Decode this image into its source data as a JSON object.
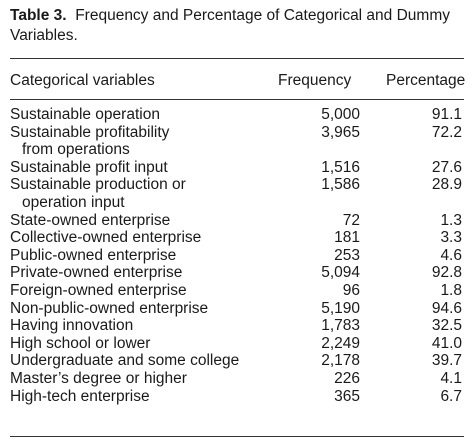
{
  "caption": {
    "label": "Table 3.",
    "title": "Frequency and Percentage of Categorical and Dummy Variables."
  },
  "header": {
    "variable": "Categorical variables",
    "frequency": "Frequency",
    "percentage": "Percentage"
  },
  "rows": [
    {
      "line1": "Sustainable operation",
      "line2": "",
      "frequency": "5,000",
      "percentage": "91.1"
    },
    {
      "line1": "Sustainable profitability",
      "line2": "from operations",
      "frequency": "3,965",
      "percentage": "72.2"
    },
    {
      "line1": "Sustainable profit input",
      "line2": "",
      "frequency": "1,516",
      "percentage": "27.6"
    },
    {
      "line1": "Sustainable production or",
      "line2": "operation input",
      "frequency": "1,586",
      "percentage": "28.9"
    },
    {
      "line1": "State-owned enterprise",
      "line2": "",
      "frequency": "72",
      "percentage": "1.3"
    },
    {
      "line1": "Collective-owned enterprise",
      "line2": "",
      "frequency": "181",
      "percentage": "3.3"
    },
    {
      "line1": "Public-owned enterprise",
      "line2": "",
      "frequency": "253",
      "percentage": "4.6"
    },
    {
      "line1": "Private-owned enterprise",
      "line2": "",
      "frequency": "5,094",
      "percentage": "92.8"
    },
    {
      "line1": "Foreign-owned enterprise",
      "line2": "",
      "frequency": "96",
      "percentage": "1.8"
    },
    {
      "line1": "Non-public-owned enterprise",
      "line2": "",
      "frequency": "5,190",
      "percentage": "94.6"
    },
    {
      "line1": "Having innovation",
      "line2": "",
      "frequency": "1,783",
      "percentage": "32.5"
    },
    {
      "line1": "High school or lower",
      "line2": "",
      "frequency": "2,249",
      "percentage": "41.0"
    },
    {
      "line1": "Undergraduate and some college",
      "line2": "",
      "frequency": "2,178",
      "percentage": "39.7"
    },
    {
      "line1": "Master’s degree or higher",
      "line2": "",
      "frequency": "226",
      "percentage": "4.1"
    },
    {
      "line1": "High-tech enterprise",
      "line2": "",
      "frequency": "365",
      "percentage": "6.7"
    }
  ]
}
